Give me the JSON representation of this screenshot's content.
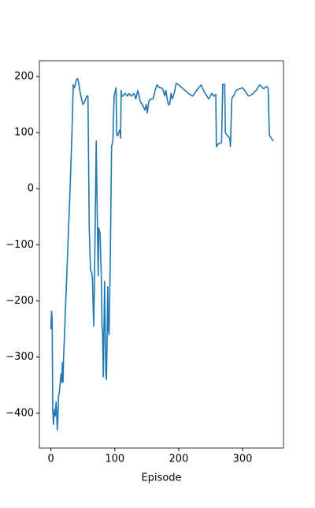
{
  "chart_data": {
    "type": "line",
    "xlabel": "Episode",
    "color": "#1f77b4",
    "xlim": [
      -18,
      364
    ],
    "ylim": [
      -462,
      228
    ],
    "xticks": [
      0,
      100,
      200,
      300
    ],
    "yticks": [
      {
        "value": -400,
        "label": "−400"
      },
      {
        "value": -300,
        "label": "−300"
      },
      {
        "value": -200,
        "label": "−200"
      },
      {
        "value": -100,
        "label": "−100"
      },
      0,
      100,
      200
    ],
    "x": [
      0,
      1,
      2,
      3,
      4,
      5,
      6,
      7,
      8,
      9,
      10,
      11,
      12,
      13,
      15,
      16,
      17,
      18,
      19,
      20,
      25,
      30,
      33,
      35,
      37,
      39,
      40,
      42,
      44,
      46,
      48,
      50,
      53,
      56,
      58,
      60,
      62,
      64,
      65,
      67,
      68,
      70,
      71,
      72,
      74,
      75,
      77,
      79,
      80,
      81,
      82,
      84,
      86,
      87,
      88,
      89,
      90,
      91,
      93,
      95,
      97,
      99,
      101,
      102,
      103,
      105,
      106,
      108,
      109,
      110,
      111,
      113,
      116,
      120,
      122,
      126,
      130,
      133,
      136,
      138,
      140,
      143,
      145,
      147,
      149,
      151,
      153,
      156,
      160,
      163,
      166,
      170,
      173,
      176,
      178,
      180,
      182,
      184,
      186,
      188,
      190,
      193,
      196,
      200,
      205,
      210,
      215,
      222,
      228,
      235,
      240,
      247,
      252,
      255,
      258,
      259,
      262,
      267,
      269,
      272,
      273,
      276,
      280,
      281,
      283,
      287,
      290,
      295,
      300,
      305,
      309,
      315,
      321,
      327,
      333,
      337,
      340,
      342,
      346,
      348
    ],
    "values": [
      -250,
      -218,
      -230,
      -395,
      -420,
      -400,
      -393,
      -405,
      -380,
      -395,
      -430,
      -410,
      -370,
      -365,
      -340,
      -330,
      -345,
      -310,
      -345,
      -300,
      -150,
      0,
      100,
      185,
      180,
      190,
      195,
      196,
      185,
      170,
      160,
      150,
      155,
      165,
      165,
      -70,
      -145,
      -150,
      -160,
      -245,
      -180,
      -5,
      85,
      0,
      -155,
      -70,
      -80,
      -160,
      -245,
      -255,
      -335,
      -165,
      -330,
      -340,
      -270,
      -175,
      -250,
      -260,
      -120,
      75,
      85,
      165,
      175,
      180,
      95,
      95,
      100,
      105,
      90,
      175,
      165,
      165,
      170,
      165,
      170,
      165,
      170,
      160,
      175,
      165,
      155,
      150,
      145,
      140,
      150,
      135,
      155,
      160,
      160,
      175,
      185,
      180,
      180,
      175,
      165,
      175,
      160,
      150,
      150,
      170,
      160,
      170,
      188,
      185,
      180,
      175,
      170,
      165,
      175,
      185,
      172,
      160,
      170,
      165,
      168,
      75,
      80,
      82,
      186,
      186,
      100,
      95,
      90,
      75,
      160,
      168,
      175,
      178,
      180,
      172,
      165,
      168,
      175,
      185,
      178,
      182,
      180,
      95,
      88,
      85
    ]
  }
}
